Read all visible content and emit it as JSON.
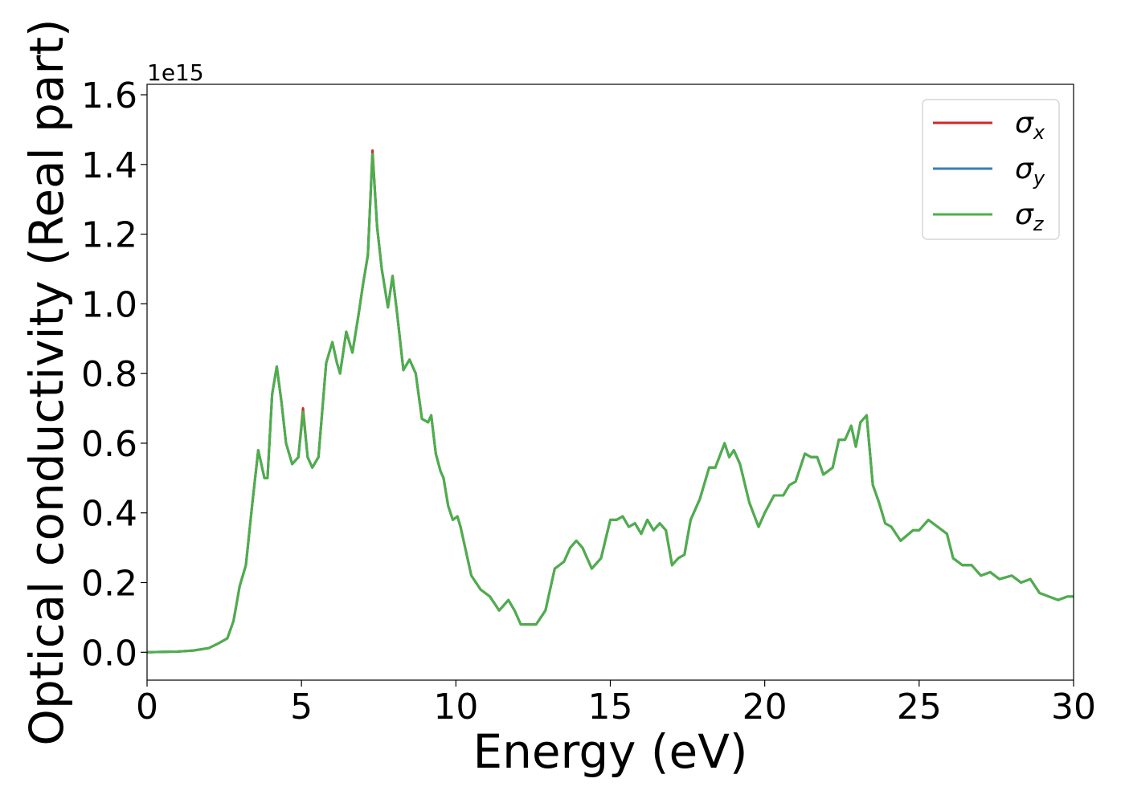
{
  "chart_data": {
    "type": "line",
    "title": "",
    "xlabel": "Energy (eV)",
    "ylabel": "Optical conductivity (Real part)",
    "y_offset_label": "1e15",
    "xlim": [
      0,
      30
    ],
    "ylim": [
      -0.08,
      1.63
    ],
    "xticks": [
      0,
      5,
      10,
      15,
      20,
      25,
      30
    ],
    "xtick_labels": [
      "0",
      "5",
      "10",
      "15",
      "20",
      "25",
      "30"
    ],
    "yticks": [
      0.0,
      0.2,
      0.4,
      0.6,
      0.8,
      1.0,
      1.2,
      1.4,
      1.6
    ],
    "ytick_labels": [
      "0.0",
      "0.2",
      "0.4",
      "0.6",
      "0.8",
      "1.0",
      "1.2",
      "1.4",
      "1.6"
    ],
    "grid": false,
    "legend_position": "top-right",
    "x": [
      0.0,
      1.0,
      1.5,
      2.0,
      2.3,
      2.6,
      2.8,
      3.0,
      3.2,
      3.4,
      3.6,
      3.8,
      3.9,
      4.05,
      4.2,
      4.35,
      4.5,
      4.7,
      4.9,
      5.05,
      5.2,
      5.35,
      5.55,
      5.8,
      6.0,
      6.15,
      6.25,
      6.45,
      6.65,
      6.85,
      7.0,
      7.15,
      7.3,
      7.45,
      7.6,
      7.8,
      7.95,
      8.1,
      8.3,
      8.5,
      8.7,
      8.9,
      9.1,
      9.2,
      9.35,
      9.5,
      9.6,
      9.75,
      9.9,
      10.05,
      10.15,
      10.3,
      10.5,
      10.8,
      11.1,
      11.4,
      11.7,
      11.9,
      12.1,
      12.3,
      12.6,
      12.9,
      13.2,
      13.5,
      13.7,
      13.9,
      14.1,
      14.4,
      14.7,
      15.0,
      15.2,
      15.4,
      15.6,
      15.8,
      16.0,
      16.2,
      16.4,
      16.6,
      16.8,
      17.0,
      17.2,
      17.4,
      17.6,
      17.9,
      18.2,
      18.4,
      18.7,
      18.85,
      19.0,
      19.2,
      19.5,
      19.8,
      20.0,
      20.3,
      20.6,
      20.8,
      21.0,
      21.3,
      21.5,
      21.7,
      21.9,
      22.2,
      22.4,
      22.6,
      22.8,
      22.95,
      23.1,
      23.3,
      23.5,
      23.7,
      23.9,
      24.1,
      24.4,
      24.8,
      25.0,
      25.3,
      25.6,
      25.9,
      26.1,
      26.4,
      26.7,
      27.0,
      27.3,
      27.6,
      28.0,
      28.3,
      28.6,
      28.9,
      29.2,
      29.5,
      29.8,
      30.0
    ],
    "series": [
      {
        "name": "σx",
        "color": "#d62728",
        "values": [
          0.0,
          0.002,
          0.005,
          0.012,
          0.025,
          0.04,
          0.09,
          0.19,
          0.25,
          0.42,
          0.58,
          0.5,
          0.5,
          0.74,
          0.82,
          0.72,
          0.6,
          0.54,
          0.56,
          0.7,
          0.56,
          0.53,
          0.56,
          0.83,
          0.89,
          0.83,
          0.8,
          0.92,
          0.86,
          0.97,
          1.06,
          1.14,
          1.44,
          1.22,
          1.1,
          0.99,
          1.08,
          0.97,
          0.81,
          0.84,
          0.8,
          0.67,
          0.66,
          0.68,
          0.57,
          0.52,
          0.5,
          0.42,
          0.38,
          0.39,
          0.36,
          0.3,
          0.22,
          0.18,
          0.16,
          0.12,
          0.15,
          0.12,
          0.08,
          0.08,
          0.08,
          0.12,
          0.24,
          0.26,
          0.3,
          0.32,
          0.3,
          0.24,
          0.27,
          0.38,
          0.38,
          0.39,
          0.36,
          0.37,
          0.34,
          0.38,
          0.35,
          0.37,
          0.35,
          0.25,
          0.27,
          0.28,
          0.38,
          0.44,
          0.53,
          0.53,
          0.6,
          0.56,
          0.58,
          0.54,
          0.43,
          0.36,
          0.4,
          0.45,
          0.45,
          0.48,
          0.49,
          0.57,
          0.56,
          0.56,
          0.51,
          0.53,
          0.61,
          0.61,
          0.65,
          0.59,
          0.66,
          0.68,
          0.48,
          0.43,
          0.37,
          0.36,
          0.32,
          0.35,
          0.35,
          0.38,
          0.36,
          0.34,
          0.27,
          0.25,
          0.25,
          0.22,
          0.23,
          0.21,
          0.22,
          0.2,
          0.21,
          0.17,
          0.16,
          0.15,
          0.16,
          0.16
        ]
      },
      {
        "name": "σy",
        "color": "#377eb8",
        "values": [
          0.0,
          0.002,
          0.005,
          0.012,
          0.025,
          0.04,
          0.09,
          0.19,
          0.25,
          0.42,
          0.58,
          0.5,
          0.5,
          0.74,
          0.82,
          0.72,
          0.6,
          0.54,
          0.56,
          0.69,
          0.56,
          0.53,
          0.56,
          0.83,
          0.89,
          0.83,
          0.8,
          0.92,
          0.86,
          0.97,
          1.06,
          1.14,
          1.43,
          1.22,
          1.1,
          0.99,
          1.08,
          0.97,
          0.81,
          0.84,
          0.8,
          0.67,
          0.66,
          0.68,
          0.57,
          0.52,
          0.5,
          0.42,
          0.38,
          0.39,
          0.36,
          0.3,
          0.22,
          0.18,
          0.16,
          0.12,
          0.15,
          0.12,
          0.08,
          0.08,
          0.08,
          0.12,
          0.24,
          0.26,
          0.3,
          0.32,
          0.3,
          0.24,
          0.27,
          0.38,
          0.38,
          0.39,
          0.36,
          0.37,
          0.34,
          0.38,
          0.35,
          0.37,
          0.35,
          0.25,
          0.27,
          0.28,
          0.38,
          0.44,
          0.53,
          0.53,
          0.6,
          0.56,
          0.58,
          0.54,
          0.43,
          0.36,
          0.4,
          0.45,
          0.45,
          0.48,
          0.49,
          0.57,
          0.56,
          0.56,
          0.51,
          0.53,
          0.61,
          0.61,
          0.65,
          0.59,
          0.66,
          0.68,
          0.48,
          0.43,
          0.37,
          0.36,
          0.32,
          0.35,
          0.35,
          0.38,
          0.36,
          0.34,
          0.27,
          0.25,
          0.25,
          0.22,
          0.23,
          0.21,
          0.22,
          0.2,
          0.21,
          0.17,
          0.16,
          0.15,
          0.16,
          0.16
        ]
      },
      {
        "name": "σz",
        "color": "#4daf4a",
        "values": [
          0.0,
          0.002,
          0.005,
          0.012,
          0.025,
          0.04,
          0.09,
          0.19,
          0.25,
          0.42,
          0.58,
          0.5,
          0.5,
          0.74,
          0.82,
          0.72,
          0.6,
          0.54,
          0.56,
          0.69,
          0.56,
          0.53,
          0.56,
          0.83,
          0.89,
          0.83,
          0.8,
          0.92,
          0.86,
          0.97,
          1.06,
          1.14,
          1.43,
          1.22,
          1.1,
          0.99,
          1.08,
          0.97,
          0.81,
          0.84,
          0.8,
          0.67,
          0.66,
          0.68,
          0.57,
          0.52,
          0.5,
          0.42,
          0.38,
          0.39,
          0.36,
          0.3,
          0.22,
          0.18,
          0.16,
          0.12,
          0.15,
          0.12,
          0.08,
          0.08,
          0.08,
          0.12,
          0.24,
          0.26,
          0.3,
          0.32,
          0.3,
          0.24,
          0.27,
          0.38,
          0.38,
          0.39,
          0.36,
          0.37,
          0.34,
          0.38,
          0.35,
          0.37,
          0.35,
          0.25,
          0.27,
          0.28,
          0.38,
          0.44,
          0.53,
          0.53,
          0.6,
          0.56,
          0.58,
          0.54,
          0.43,
          0.36,
          0.4,
          0.45,
          0.45,
          0.48,
          0.49,
          0.57,
          0.56,
          0.56,
          0.51,
          0.53,
          0.61,
          0.61,
          0.65,
          0.59,
          0.66,
          0.68,
          0.48,
          0.43,
          0.37,
          0.36,
          0.32,
          0.35,
          0.35,
          0.38,
          0.36,
          0.34,
          0.27,
          0.25,
          0.25,
          0.22,
          0.23,
          0.21,
          0.22,
          0.2,
          0.21,
          0.17,
          0.16,
          0.15,
          0.16,
          0.16
        ]
      }
    ]
  }
}
